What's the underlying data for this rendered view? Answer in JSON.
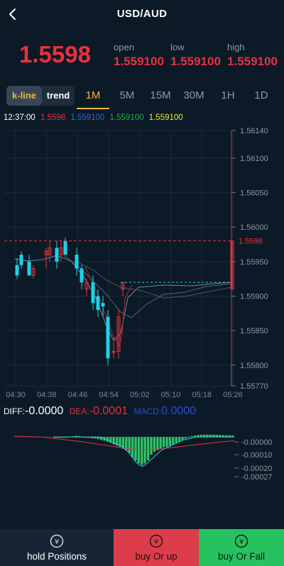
{
  "header": {
    "title": "USD/AUD"
  },
  "quote": {
    "price": "1.5598",
    "open_label": "open",
    "open_value": "1.559100",
    "low_label": "low",
    "low_value": "1.559100",
    "high_label": "high",
    "high_value": "1.559100"
  },
  "mode_toggle": {
    "kline_label": "k-line",
    "trend_label": "trend"
  },
  "timeframes": [
    "1M",
    "5M",
    "15M",
    "30M",
    "1H",
    "1D"
  ],
  "active_timeframe": "1M",
  "info_line": {
    "time": "12:37:00",
    "v1": "1.5598",
    "v2": "1.559100",
    "v3": "1.559100",
    "v4": "1.559100"
  },
  "colors": {
    "up": "#e8313f",
    "down": "#1fd1e8",
    "accent": "#f3b33d",
    "v2": "#2f6bd1",
    "v3": "#2fa84a",
    "v4": "#f2ea2a",
    "buy_up_bg": "#dd3d4a",
    "buy_fall_bg": "#26c25f",
    "hold_bg": "#172436"
  },
  "chart_data": [
    {
      "type": "candlestick",
      "x_tick_labels": [
        "04:30",
        "04:38",
        "04:46",
        "04:54",
        "05:02",
        "05:10",
        "05:18",
        "05:26"
      ],
      "y_tick_labels": [
        "1.56140",
        "1.56100",
        "1.56050",
        "1.56000",
        "1.55950",
        "1.55900",
        "1.55850",
        "1.55800",
        "1.55770"
      ],
      "ylim": [
        1.5577,
        1.5614
      ],
      "current_price_label": "1.5598",
      "current_price": 1.5598,
      "dashed_reference": 1.5592,
      "candles": [
        {
          "o": 1.55945,
          "h": 1.55955,
          "l": 1.55925,
          "c": 1.5593
        },
        {
          "o": 1.5596,
          "h": 1.55965,
          "l": 1.5594,
          "c": 1.55945
        },
        {
          "o": 1.5595,
          "h": 1.5596,
          "l": 1.5593,
          "c": 1.5593
        },
        {
          "o": 1.5593,
          "h": 1.55945,
          "l": 1.55925,
          "c": 1.5594
        },
        {
          "o": 1.5596,
          "h": 1.5597,
          "l": 1.5594,
          "c": 1.55965
        },
        {
          "o": 1.5596,
          "h": 1.5598,
          "l": 1.5595,
          "c": 1.5597
        },
        {
          "o": 1.5597,
          "h": 1.5598,
          "l": 1.5594,
          "c": 1.5595
        },
        {
          "o": 1.5596,
          "h": 1.5598,
          "l": 1.5595,
          "c": 1.5597
        },
        {
          "o": 1.5598,
          "h": 1.55985,
          "l": 1.5596,
          "c": 1.5596
        },
        {
          "o": 1.5596,
          "h": 1.5597,
          "l": 1.5593,
          "c": 1.5594
        },
        {
          "o": 1.5594,
          "h": 1.55945,
          "l": 1.5591,
          "c": 1.5592
        },
        {
          "o": 1.5591,
          "h": 1.55925,
          "l": 1.559,
          "c": 1.5592
        },
        {
          "o": 1.5592,
          "h": 1.5593,
          "l": 1.5588,
          "c": 1.5589
        },
        {
          "o": 1.559,
          "h": 1.5591,
          "l": 1.5587,
          "c": 1.5588
        },
        {
          "o": 1.5589,
          "h": 1.559,
          "l": 1.5587,
          "c": 1.55885
        },
        {
          "o": 1.5587,
          "h": 1.5588,
          "l": 1.558,
          "c": 1.5581
        },
        {
          "o": 1.5582,
          "h": 1.5584,
          "l": 1.5581,
          "c": 1.5582
        },
        {
          "o": 1.5582,
          "h": 1.5588,
          "l": 1.5581,
          "c": 1.5587
        },
        {
          "o": 1.5591,
          "h": 1.5592,
          "l": 1.559,
          "c": 1.5592
        },
        {
          "o": 1.5591,
          "h": 1.5598,
          "l": 1.5591,
          "c": 1.5598
        }
      ]
    },
    {
      "type": "macd",
      "diff_label": "DIFF:",
      "diff_value": "-0.0000",
      "dea_label": "DEA:",
      "dea_value": "-0.0001",
      "macd_label": "MACD:",
      "macd_value": "0.0000",
      "y_tick_labels": [
        "-0.00000",
        "-0.00010",
        "-0.00020",
        "-0.00027"
      ],
      "ylim": [
        -0.00027,
        2e-05
      ],
      "histogram": [
        0.0,
        0.0,
        0.0,
        0.0,
        0.0,
        3e-06,
        5e-06,
        8e-06,
        6e-06,
        2e-06,
        -3e-06,
        -6e-06,
        -9e-06,
        -1e-05,
        -1.4e-05,
        -2e-05,
        -2.5e-05,
        -3.2e-05,
        -4e-05,
        -5e-05,
        -5.8e-05,
        -6.7e-05,
        -8e-05,
        -9e-05,
        -0.00011,
        -0.00014,
        -0.00016,
        -0.00018,
        -0.00019,
        -0.00018,
        -0.00016,
        -0.00012,
        -0.0001,
        -9e-05,
        -8e-05,
        -7e-05,
        -6.5e-05,
        -6e-05,
        -5e-05,
        -4e-05,
        -3e-05,
        -2e-05,
        -1e-05,
        0.0,
        6e-06,
        1e-05,
        1.3e-05,
        1.5e-05,
        1.6e-05,
        1.6e-05,
        1.6e-05,
        1.6e-05,
        1.5e-05,
        1.4e-05,
        1.3e-05,
        1.2e-05,
        1.1e-05,
        1.1e-05
      ],
      "diff_line": [
        0,
        0,
        0,
        0,
        0,
        0,
        0,
        0,
        0,
        0,
        0,
        0,
        0,
        0,
        0,
        0,
        -1e-05,
        -2e-05,
        -3e-05,
        -4e-05,
        -5e-05,
        -6e-05,
        -7e-05,
        -9e-05,
        -0.00011,
        -0.00014,
        -0.00017,
        -0.00019,
        -0.0002,
        -0.00019,
        -0.00017,
        -0.00015,
        -0.00013,
        -0.00011,
        -9e-05,
        -8e-05,
        -7e-05,
        -6e-05,
        -5e-05,
        -4e-05,
        -3e-05,
        -2e-05,
        -1.5e-05,
        -1e-05,
        -5e-06,
        0,
        0,
        0,
        0,
        0,
        0,
        0,
        0,
        0,
        0,
        0,
        0,
        0
      ],
      "dea_line": [
        5e-06,
        5e-06,
        4e-06,
        3e-06,
        2e-06,
        1e-06,
        0,
        0,
        -3e-06,
        -6e-06,
        -9e-06,
        -1.2e-05,
        -1.5e-05,
        -1.8e-05,
        -2.1e-05,
        -2.4e-05,
        -2.7e-05,
        -3e-05,
        -3.4e-05,
        -3.8e-05,
        -4.2e-05,
        -4.6e-05,
        -5e-05,
        -5.4e-05,
        -5.8e-05,
        -6.2e-05,
        -6.6e-05,
        -7e-05,
        -7.4e-05,
        -7.8e-05,
        -8.1e-05,
        -8.3e-05,
        -8.4e-05,
        -8.5e-05,
        -8.5e-05,
        -8.4e-05,
        -8.3e-05,
        -8.1e-05,
        -7.9e-05,
        -7.7e-05,
        -7.4e-05,
        -7.1e-05,
        -6.8e-05,
        -6.5e-05,
        -6.2e-05,
        -5.9e-05,
        -5.6e-05,
        -5.3e-05,
        -5e-05,
        -4.7e-05,
        -4.4e-05,
        -4.1e-05,
        -3.8e-05,
        -3.5e-05,
        -3.2e-05,
        -3e-05,
        -2.8e-05,
        -2.6e-05
      ]
    }
  ],
  "bottom_bar": {
    "hold_label": "hold Positions",
    "buy_up_label": "buy Or up",
    "buy_fall_label": "buy Or Fall"
  }
}
